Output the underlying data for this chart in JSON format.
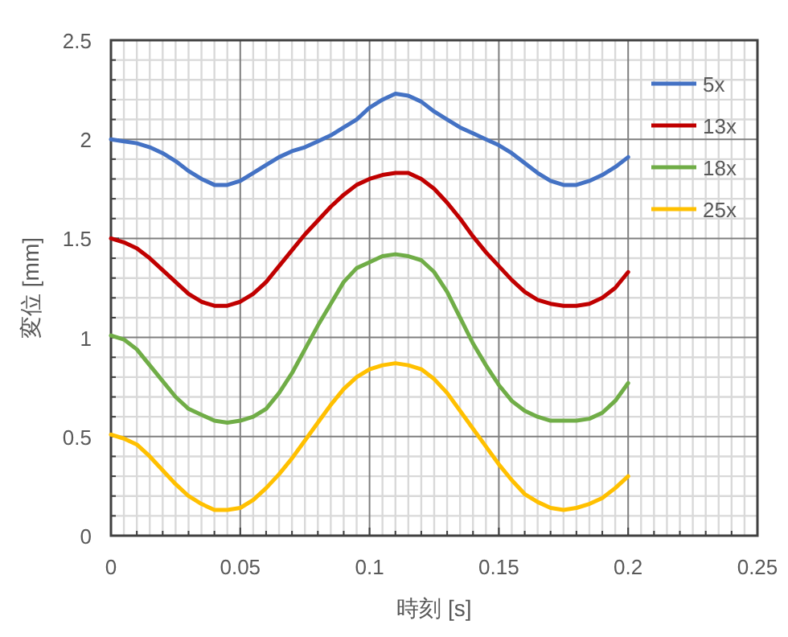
{
  "chart_data": {
    "type": "line",
    "xlabel": "時刻 [s]",
    "ylabel": "変位 [mm]",
    "x": [
      0,
      0.005,
      0.01,
      0.015,
      0.02,
      0.025,
      0.03,
      0.035,
      0.04,
      0.045,
      0.05,
      0.055,
      0.06,
      0.065,
      0.07,
      0.075,
      0.08,
      0.085,
      0.09,
      0.095,
      0.1,
      0.105,
      0.11,
      0.115,
      0.12,
      0.125,
      0.13,
      0.135,
      0.14,
      0.145,
      0.15,
      0.155,
      0.16,
      0.165,
      0.17,
      0.175,
      0.18,
      0.185,
      0.19,
      0.195,
      0.2
    ],
    "series": [
      {
        "name": "5x",
        "color": "#4472c4",
        "values": [
          2.0,
          1.99,
          1.98,
          1.96,
          1.93,
          1.89,
          1.84,
          1.8,
          1.77,
          1.77,
          1.79,
          1.83,
          1.87,
          1.91,
          1.94,
          1.96,
          1.99,
          2.02,
          2.06,
          2.1,
          2.16,
          2.2,
          2.23,
          2.22,
          2.19,
          2.14,
          2.1,
          2.06,
          2.03,
          2.0,
          1.97,
          1.93,
          1.88,
          1.83,
          1.79,
          1.77,
          1.77,
          1.79,
          1.82,
          1.86,
          1.91
        ]
      },
      {
        "name": "13x",
        "color": "#c00000",
        "values": [
          1.5,
          1.48,
          1.45,
          1.4,
          1.34,
          1.28,
          1.22,
          1.18,
          1.16,
          1.16,
          1.18,
          1.22,
          1.28,
          1.36,
          1.44,
          1.52,
          1.59,
          1.66,
          1.72,
          1.77,
          1.8,
          1.82,
          1.83,
          1.83,
          1.8,
          1.75,
          1.68,
          1.6,
          1.51,
          1.43,
          1.36,
          1.29,
          1.23,
          1.19,
          1.17,
          1.16,
          1.16,
          1.17,
          1.2,
          1.25,
          1.33
        ]
      },
      {
        "name": "18x",
        "color": "#70ad47",
        "values": [
          1.01,
          0.99,
          0.94,
          0.86,
          0.78,
          0.7,
          0.64,
          0.61,
          0.58,
          0.57,
          0.58,
          0.6,
          0.64,
          0.72,
          0.82,
          0.94,
          1.06,
          1.17,
          1.28,
          1.35,
          1.38,
          1.41,
          1.42,
          1.41,
          1.39,
          1.33,
          1.23,
          1.1,
          0.97,
          0.86,
          0.76,
          0.68,
          0.63,
          0.6,
          0.58,
          0.58,
          0.58,
          0.59,
          0.62,
          0.68,
          0.77
        ]
      },
      {
        "name": "25x",
        "color": "#ffc000",
        "values": [
          0.51,
          0.49,
          0.46,
          0.4,
          0.33,
          0.26,
          0.2,
          0.16,
          0.13,
          0.13,
          0.14,
          0.18,
          0.24,
          0.31,
          0.39,
          0.48,
          0.57,
          0.66,
          0.74,
          0.8,
          0.84,
          0.86,
          0.87,
          0.86,
          0.84,
          0.79,
          0.72,
          0.63,
          0.54,
          0.45,
          0.36,
          0.28,
          0.21,
          0.17,
          0.14,
          0.13,
          0.14,
          0.16,
          0.19,
          0.24,
          0.3
        ]
      }
    ],
    "xlim": [
      0,
      0.25
    ],
    "xticks": [
      0,
      0.05,
      0.1,
      0.15,
      0.2,
      0.25
    ],
    "ylim": [
      0,
      2.5
    ],
    "yticks": [
      0,
      0.5,
      1,
      1.5,
      2,
      2.5
    ],
    "grid": true,
    "legend": "top right",
    "marker": "none",
    "line_style": "solid"
  }
}
